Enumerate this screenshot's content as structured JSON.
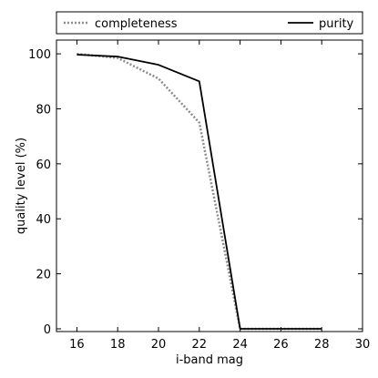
{
  "chart_data": {
    "type": "line",
    "xlabel": "i-band mag",
    "ylabel": "quality level (%)",
    "xlim": [
      15,
      30
    ],
    "ylim": [
      -1,
      105
    ],
    "xticks": [
      16,
      18,
      20,
      22,
      24,
      26,
      28,
      30
    ],
    "yticks": [
      0,
      20,
      40,
      60,
      80,
      100
    ],
    "grid": false,
    "legend": "top, outside plot area",
    "series": [
      {
        "name": "completeness",
        "style": "dotted",
        "color": "#8c8c8c",
        "x": [
          16,
          18,
          20,
          22,
          24,
          26,
          28
        ],
        "y": [
          100,
          98.5,
          91,
          75,
          0,
          0,
          0
        ]
      },
      {
        "name": "purity",
        "style": "solid",
        "color": "#000000",
        "x": [
          16,
          18,
          20,
          22,
          24,
          26,
          28
        ],
        "y": [
          99.7,
          99,
          96,
          90,
          0,
          0,
          0
        ]
      }
    ]
  }
}
